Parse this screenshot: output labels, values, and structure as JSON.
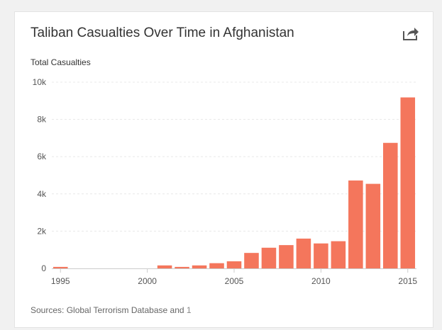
{
  "card": {
    "title": "Taliban Casualties Over Time in Afghanistan",
    "share_icon": "share-arrow-icon",
    "sources_prefix": "Sources: Global Terrorism Database and ",
    "sources_link": "1"
  },
  "colors": {
    "bar": "#f4765c",
    "grid": "#e8e8e8",
    "axis": "#cccccc"
  },
  "chart_data": {
    "type": "bar",
    "title": "Taliban Casualties Over Time in Afghanistan",
    "xlabel": "",
    "ylabel": "Total Casualties",
    "ylim": [
      0,
      10000
    ],
    "yticks": [
      0,
      2000,
      4000,
      6000,
      8000,
      10000
    ],
    "ytick_labels": [
      "0",
      "2k",
      "4k",
      "6k",
      "8k",
      "10k"
    ],
    "xticks": [
      1995,
      2000,
      2005,
      2010,
      2015
    ],
    "xlim": [
      1994.5,
      2015.5
    ],
    "x": [
      1995,
      1996,
      1997,
      1998,
      1999,
      2000,
      2001,
      2002,
      2003,
      2004,
      2005,
      2006,
      2007,
      2008,
      2009,
      2010,
      2011,
      2012,
      2013,
      2014,
      2015
    ],
    "values": [
      80,
      0,
      0,
      0,
      0,
      0,
      160,
      80,
      160,
      280,
      380,
      830,
      1110,
      1250,
      1600,
      1340,
      1460,
      4720,
      4540,
      6740,
      9180
    ],
    "grid": true
  }
}
